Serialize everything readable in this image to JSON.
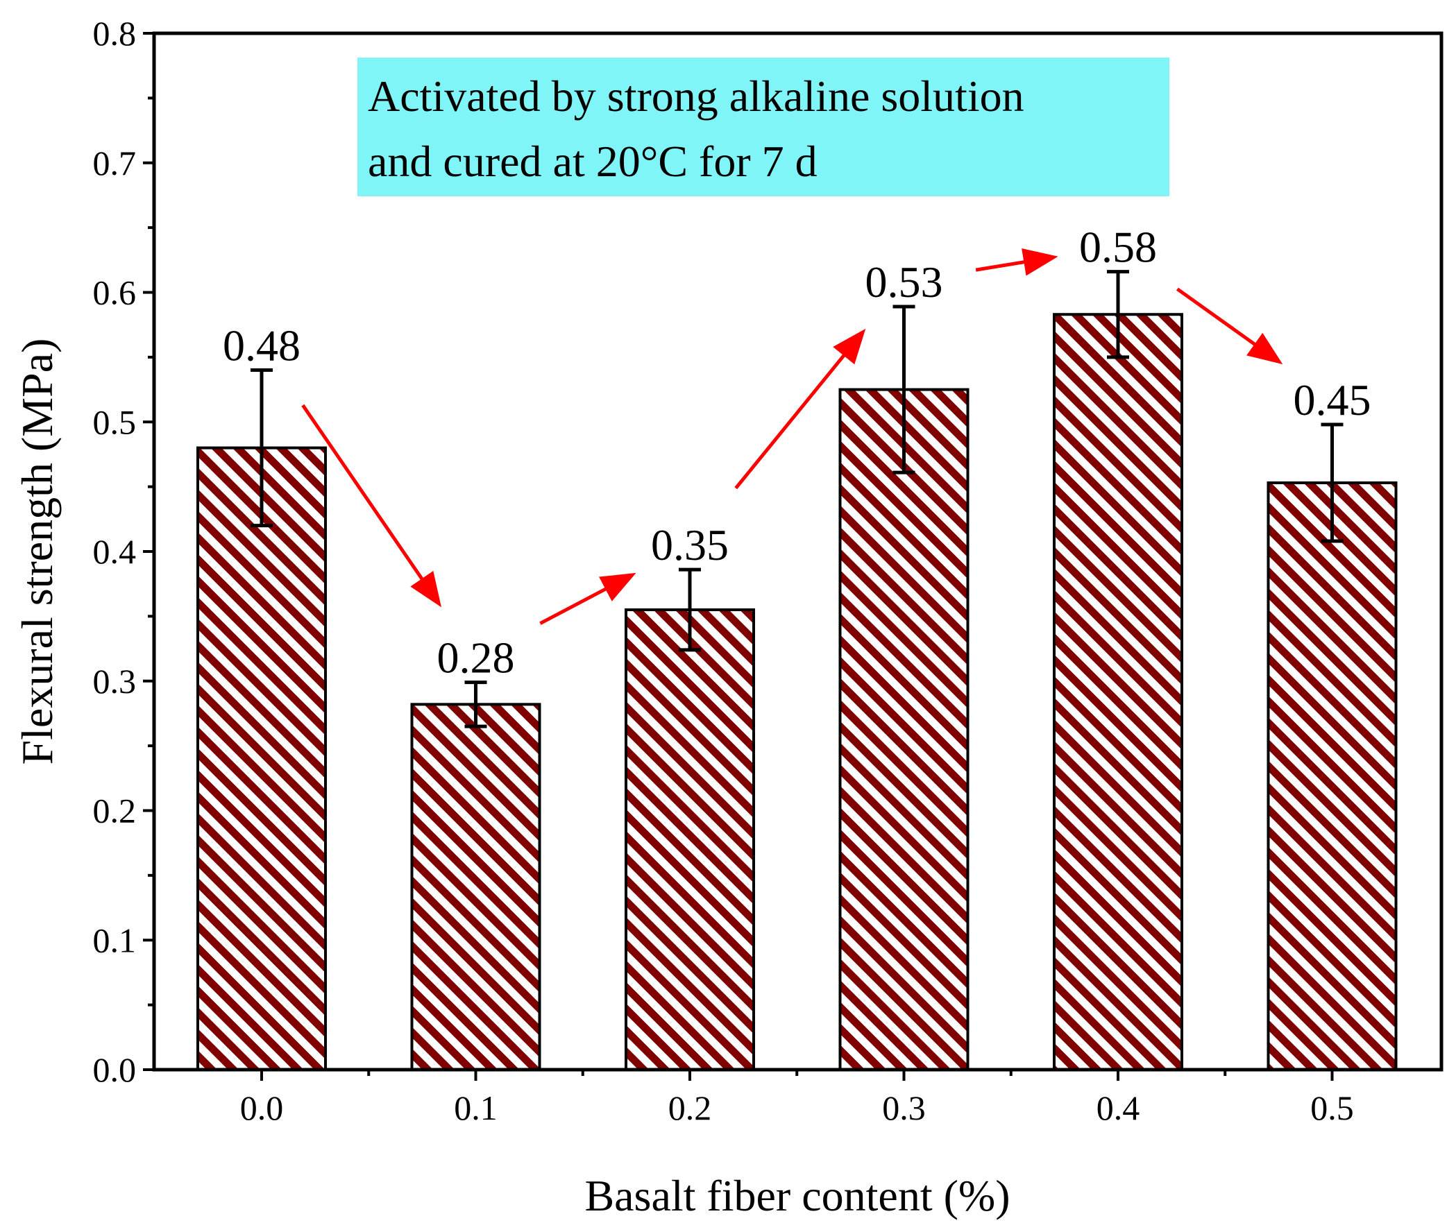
{
  "chart_data": {
    "type": "bar",
    "title": "",
    "xlabel": "Basalt fiber content (%)",
    "ylabel": "Flexural strength (MPa)",
    "categories": [
      "0.0",
      "0.1",
      "0.2",
      "0.3",
      "0.4",
      "0.5"
    ],
    "values": [
      0.48,
      0.282,
      0.355,
      0.525,
      0.583,
      0.453
    ],
    "errors": [
      0.06,
      0.017,
      0.031,
      0.064,
      0.033,
      0.045
    ],
    "data_labels": [
      "0.48",
      "0.28",
      "0.35",
      "0.53",
      "0.58",
      "0.45"
    ],
    "ylim": [
      0,
      0.8
    ],
    "yticks": [
      "0.0",
      "0.1",
      "0.2",
      "0.3",
      "0.4",
      "0.5",
      "0.6",
      "0.7",
      "0.8"
    ],
    "grid": false,
    "legend": "none",
    "annotation": {
      "lines": [
        "Activated by strong alkaline solution",
        "and cured at 20°C for 7 d"
      ],
      "background": "#7ff5f7"
    },
    "trend_arrows": [
      {
        "from": "0.0",
        "to": "0.1"
      },
      {
        "from": "0.1",
        "to": "0.2"
      },
      {
        "from": "0.2",
        "to": "0.3"
      },
      {
        "from": "0.3",
        "to": "0.4"
      },
      {
        "from": "0.4",
        "to": "0.5"
      }
    ]
  },
  "colors": {
    "bar_hatch": "#800000",
    "bar_background": "#ffffff",
    "arrow": "#ff0000",
    "axis": "#000000"
  }
}
